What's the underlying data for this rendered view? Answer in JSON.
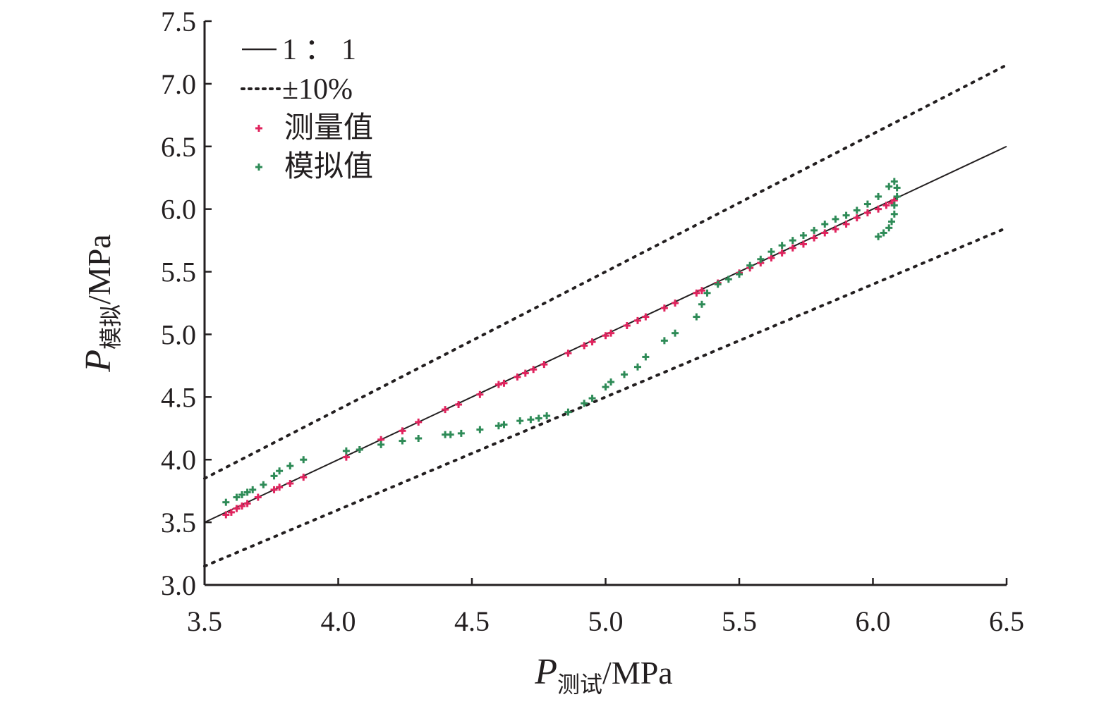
{
  "chart_data": {
    "type": "scatter",
    "x_axis": {
      "label_main": "P",
      "label_sub": "测试",
      "label_unit": "/MPa",
      "range": [
        3.5,
        6.5
      ],
      "ticks": [
        "3.5",
        "4.0",
        "4.5",
        "5.0",
        "5.5",
        "6.0",
        "6.5"
      ]
    },
    "y_axis": {
      "label_main": "P",
      "label_sub": "模拟",
      "label_unit": "/MPa",
      "range": [
        3.0,
        7.5
      ],
      "ticks": [
        "3.0",
        "3.5",
        "4.0",
        "4.5",
        "5.0",
        "5.5",
        "6.0",
        "6.5",
        "7.0",
        "7.5"
      ]
    },
    "grid": false,
    "legend_position": "top-left",
    "legend": [
      {
        "key": "line_1_1",
        "label": "1 ： 1"
      },
      {
        "key": "band_10",
        "label": "±10%"
      },
      {
        "key": "measured",
        "label": "测量值"
      },
      {
        "key": "simulated",
        "label": "模拟值"
      }
    ],
    "reference_lines": [
      {
        "key": "line_1_1",
        "style": "solid",
        "color": "#231f20",
        "x": [
          3.5,
          6.5
        ],
        "y": [
          3.5,
          6.5
        ]
      },
      {
        "key": "upper_10",
        "style": "dotted",
        "color": "#231f20",
        "x": [
          3.5,
          6.5
        ],
        "y": [
          3.85,
          7.15
        ]
      },
      {
        "key": "lower_10",
        "style": "dotted",
        "color": "#231f20",
        "x": [
          3.5,
          6.5
        ],
        "y": [
          3.15,
          5.85
        ]
      }
    ],
    "series": [
      {
        "key": "measured",
        "color": "#e0245e",
        "points": [
          [
            3.58,
            3.56
          ],
          [
            3.6,
            3.58
          ],
          [
            3.62,
            3.61
          ],
          [
            3.64,
            3.63
          ],
          [
            3.66,
            3.65
          ],
          [
            3.7,
            3.7
          ],
          [
            3.76,
            3.76
          ],
          [
            3.78,
            3.78
          ],
          [
            3.82,
            3.81
          ],
          [
            3.87,
            3.86
          ],
          [
            4.03,
            4.02
          ],
          [
            4.08,
            4.08
          ],
          [
            4.16,
            4.16
          ],
          [
            4.24,
            4.23
          ],
          [
            4.3,
            4.3
          ],
          [
            4.4,
            4.4
          ],
          [
            4.45,
            4.44
          ],
          [
            4.53,
            4.52
          ],
          [
            4.6,
            4.6
          ],
          [
            4.62,
            4.61
          ],
          [
            4.67,
            4.66
          ],
          [
            4.7,
            4.69
          ],
          [
            4.73,
            4.72
          ],
          [
            4.77,
            4.76
          ],
          [
            4.86,
            4.85
          ],
          [
            4.92,
            4.91
          ],
          [
            4.95,
            4.94
          ],
          [
            5.0,
            4.99
          ],
          [
            5.02,
            5.01
          ],
          [
            5.08,
            5.07
          ],
          [
            5.12,
            5.11
          ],
          [
            5.15,
            5.14
          ],
          [
            5.22,
            5.21
          ],
          [
            5.26,
            5.25
          ],
          [
            5.34,
            5.33
          ],
          [
            5.36,
            5.35
          ],
          [
            5.42,
            5.41
          ],
          [
            5.5,
            5.49
          ],
          [
            5.54,
            5.53
          ],
          [
            5.58,
            5.57
          ],
          [
            5.62,
            5.61
          ],
          [
            5.66,
            5.65
          ],
          [
            5.7,
            5.69
          ],
          [
            5.74,
            5.72
          ],
          [
            5.78,
            5.77
          ],
          [
            5.82,
            5.81
          ],
          [
            5.86,
            5.84
          ],
          [
            5.9,
            5.88
          ],
          [
            5.94,
            5.93
          ],
          [
            5.98,
            5.97
          ],
          [
            6.02,
            6.0
          ],
          [
            6.05,
            6.03
          ],
          [
            6.07,
            6.05
          ],
          [
            6.08,
            6.07
          ]
        ]
      },
      {
        "key": "simulated",
        "color": "#2e8b57",
        "points": [
          [
            3.58,
            3.66
          ],
          [
            3.62,
            3.7
          ],
          [
            3.64,
            3.72
          ],
          [
            3.66,
            3.74
          ],
          [
            3.68,
            3.76
          ],
          [
            3.72,
            3.8
          ],
          [
            3.76,
            3.87
          ],
          [
            3.78,
            3.91
          ],
          [
            3.82,
            3.95
          ],
          [
            3.87,
            4.0
          ],
          [
            4.03,
            4.07
          ],
          [
            4.08,
            4.08
          ],
          [
            4.16,
            4.12
          ],
          [
            4.24,
            4.15
          ],
          [
            4.3,
            4.17
          ],
          [
            4.4,
            4.2
          ],
          [
            4.42,
            4.2
          ],
          [
            4.46,
            4.21
          ],
          [
            4.53,
            4.24
          ],
          [
            4.6,
            4.27
          ],
          [
            4.62,
            4.28
          ],
          [
            4.68,
            4.31
          ],
          [
            4.72,
            4.32
          ],
          [
            4.75,
            4.33
          ],
          [
            4.78,
            4.35
          ],
          [
            4.86,
            4.38
          ],
          [
            4.92,
            4.45
          ],
          [
            4.95,
            4.49
          ],
          [
            5.0,
            4.58
          ],
          [
            5.02,
            4.62
          ],
          [
            5.07,
            4.68
          ],
          [
            5.12,
            4.74
          ],
          [
            5.15,
            4.82
          ],
          [
            5.22,
            4.95
          ],
          [
            5.26,
            5.01
          ],
          [
            5.34,
            5.14
          ],
          [
            5.36,
            5.24
          ],
          [
            5.38,
            5.33
          ],
          [
            5.42,
            5.4
          ],
          [
            5.46,
            5.44
          ],
          [
            5.5,
            5.48
          ],
          [
            5.54,
            5.55
          ],
          [
            5.58,
            5.6
          ],
          [
            5.62,
            5.66
          ],
          [
            5.66,
            5.71
          ],
          [
            5.7,
            5.75
          ],
          [
            5.74,
            5.79
          ],
          [
            5.78,
            5.83
          ],
          [
            5.82,
            5.88
          ],
          [
            5.86,
            5.92
          ],
          [
            5.9,
            5.95
          ],
          [
            5.94,
            5.99
          ],
          [
            5.98,
            6.04
          ],
          [
            6.02,
            6.1
          ],
          [
            6.06,
            6.18
          ],
          [
            6.08,
            6.22
          ],
          [
            6.09,
            6.17
          ],
          [
            6.09,
            6.1
          ],
          [
            6.08,
            6.03
          ],
          [
            6.08,
            5.96
          ],
          [
            6.07,
            5.9
          ],
          [
            6.06,
            5.85
          ],
          [
            6.04,
            5.81
          ],
          [
            6.02,
            5.78
          ]
        ]
      }
    ]
  }
}
